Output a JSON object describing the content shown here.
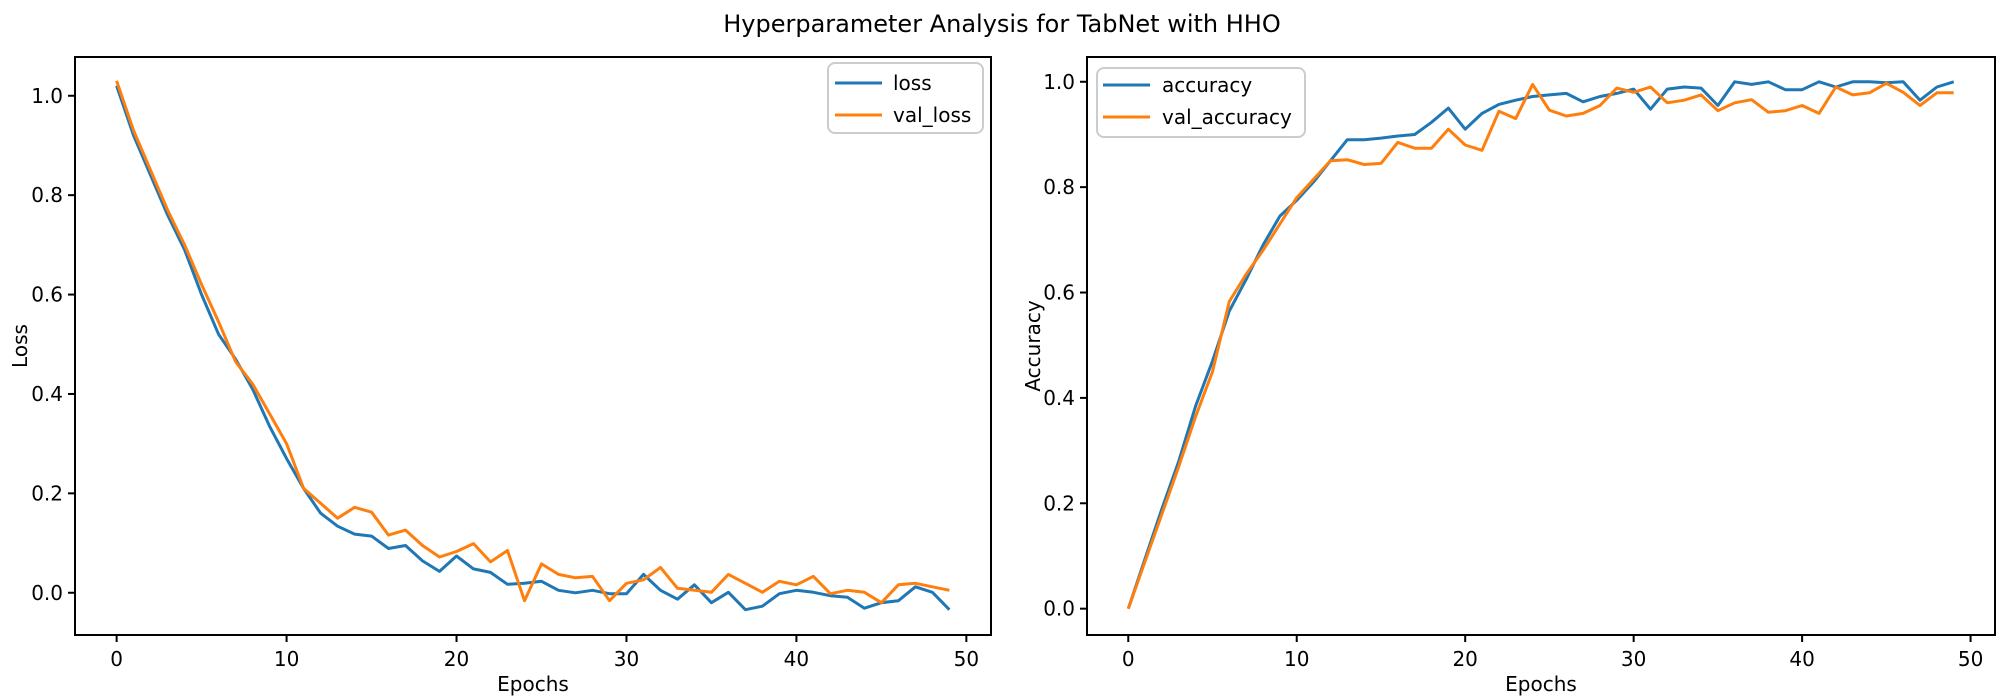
{
  "title": "Hyperparameter Analysis for TabNet with HHO",
  "colors": {
    "blue": "#1f77b4",
    "orange": "#ff7f0e",
    "axis": "#000000",
    "legend_border": "#cccccc",
    "background": "#ffffff"
  },
  "chart_data": [
    {
      "type": "line",
      "xlabel": "Epochs",
      "ylabel": "Loss",
      "legend_position": "upper right",
      "grid": false,
      "xlim": [
        -2.45,
        51.45
      ],
      "ylim": [
        -0.085,
        1.078
      ],
      "xticks": [
        "0",
        "10",
        "20",
        "30",
        "40",
        "50"
      ],
      "xtick_values": [
        0,
        10,
        20,
        30,
        40,
        50
      ],
      "yticks": [
        "0.0",
        "0.2",
        "0.4",
        "0.6",
        "0.8",
        "1.0"
      ],
      "ytick_values": [
        0.0,
        0.2,
        0.4,
        0.6,
        0.8,
        1.0
      ],
      "x": [
        0,
        1,
        2,
        3,
        4,
        5,
        6,
        7,
        8,
        9,
        10,
        11,
        12,
        13,
        14,
        15,
        16,
        17,
        18,
        19,
        20,
        21,
        22,
        23,
        24,
        25,
        26,
        27,
        28,
        29,
        30,
        31,
        32,
        33,
        34,
        35,
        36,
        37,
        38,
        39,
        40,
        41,
        42,
        43,
        44,
        45,
        46,
        47,
        48,
        49
      ],
      "series": [
        {
          "name": "loss",
          "color": "#1f77b4",
          "values": [
            1.02,
            0.92,
            0.84,
            0.76,
            0.69,
            0.6,
            0.52,
            0.47,
            0.41,
            0.335,
            0.27,
            0.21,
            0.16,
            0.134,
            0.118,
            0.114,
            0.089,
            0.095,
            0.064,
            0.043,
            0.074,
            0.048,
            0.041,
            0.017,
            0.019,
            0.023,
            0.005,
            0.0,
            0.005,
            -0.002,
            -0.002,
            0.037,
            0.005,
            -0.013,
            0.016,
            -0.02,
            0.001,
            -0.034,
            -0.027,
            -0.002,
            0.005,
            0.001,
            -0.006,
            -0.009,
            -0.031,
            -0.02,
            -0.016,
            0.012,
            0.001,
            -0.034
          ]
        },
        {
          "name": "val_loss",
          "color": "#ff7f0e",
          "values": [
            1.03,
            0.93,
            0.85,
            0.77,
            0.7,
            0.62,
            0.545,
            0.465,
            0.42,
            0.36,
            0.3,
            0.21,
            0.18,
            0.15,
            0.172,
            0.162,
            0.116,
            0.126,
            0.095,
            0.072,
            0.083,
            0.099,
            0.062,
            0.085,
            -0.016,
            0.058,
            0.037,
            0.03,
            0.033,
            -0.016,
            0.019,
            0.026,
            0.051,
            0.009,
            0.005,
            0.001,
            0.037,
            0.019,
            0.001,
            0.023,
            0.016,
            0.033,
            -0.002,
            0.005,
            0.001,
            -0.02,
            0.016,
            0.019,
            0.012,
            0.005
          ]
        }
      ]
    },
    {
      "type": "line",
      "xlabel": "Epochs",
      "ylabel": "Accuracy",
      "legend_position": "upper left",
      "grid": false,
      "xlim": [
        -2.45,
        51.45
      ],
      "ylim": [
        -0.05,
        1.047
      ],
      "xticks": [
        "0",
        "10",
        "20",
        "30",
        "40",
        "50"
      ],
      "xtick_values": [
        0,
        10,
        20,
        30,
        40,
        50
      ],
      "yticks": [
        "0.0",
        "0.2",
        "0.4",
        "0.6",
        "0.8",
        "1.0"
      ],
      "ytick_values": [
        0.0,
        0.2,
        0.4,
        0.6,
        0.8,
        1.0
      ],
      "x": [
        0,
        1,
        2,
        3,
        4,
        5,
        6,
        7,
        8,
        9,
        10,
        11,
        12,
        13,
        14,
        15,
        16,
        17,
        18,
        19,
        20,
        21,
        22,
        23,
        24,
        25,
        26,
        27,
        28,
        29,
        30,
        31,
        32,
        33,
        34,
        35,
        36,
        37,
        38,
        39,
        40,
        41,
        42,
        43,
        44,
        45,
        46,
        47,
        48,
        49
      ],
      "series": [
        {
          "name": "accuracy",
          "color": "#1f77b4",
          "values": [
            0.0,
            0.095,
            0.19,
            0.28,
            0.385,
            0.47,
            0.565,
            0.625,
            0.69,
            0.745,
            0.775,
            0.81,
            0.85,
            0.89,
            0.89,
            0.893,
            0.897,
            0.9,
            0.923,
            0.95,
            0.91,
            0.94,
            0.957,
            0.965,
            0.972,
            0.975,
            0.978,
            0.962,
            0.972,
            0.978,
            0.986,
            0.948,
            0.986,
            0.99,
            0.988,
            0.955,
            1.0,
            0.995,
            1.0,
            0.985,
            0.985,
            1.0,
            0.99,
            1.0,
            1.0,
            0.998,
            1.0,
            0.965,
            0.99,
            1.0
          ]
        },
        {
          "name": "val_accuracy",
          "color": "#ff7f0e",
          "values": [
            0.0,
            0.09,
            0.18,
            0.27,
            0.365,
            0.45,
            0.583,
            0.635,
            0.68,
            0.73,
            0.78,
            0.815,
            0.85,
            0.852,
            0.843,
            0.845,
            0.885,
            0.874,
            0.874,
            0.91,
            0.88,
            0.87,
            0.944,
            0.93,
            0.995,
            0.946,
            0.935,
            0.94,
            0.955,
            0.988,
            0.98,
            0.99,
            0.96,
            0.965,
            0.975,
            0.945,
            0.96,
            0.966,
            0.942,
            0.945,
            0.955,
            0.94,
            0.99,
            0.975,
            0.979,
            0.997,
            0.98,
            0.955,
            0.979,
            0.979
          ]
        }
      ]
    }
  ]
}
